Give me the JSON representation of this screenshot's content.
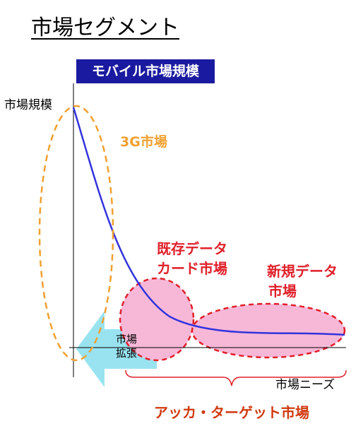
{
  "title": "市場セグメント",
  "banner": "モバイル市場規模",
  "axes": {
    "ylabel": "市場規模",
    "xlabel": "市場ニーズ"
  },
  "segments": {
    "g3": "3G市場",
    "existing_line1": "既存データ",
    "existing_line2": "カード市場",
    "new_line1": "新規データ",
    "new_line2": "市場"
  },
  "expand": {
    "line1": "市場",
    "line2": "拡張"
  },
  "target": "アッカ・ターゲット市場",
  "colors": {
    "banner": "#1a1aa0",
    "curve": "#3333dd",
    "g3": "#f0a030",
    "segment_fill": "#f7b8d8",
    "segment_stroke": "#e0202a",
    "arrow": "#8ee0f0",
    "brace": "#e0202a"
  }
}
